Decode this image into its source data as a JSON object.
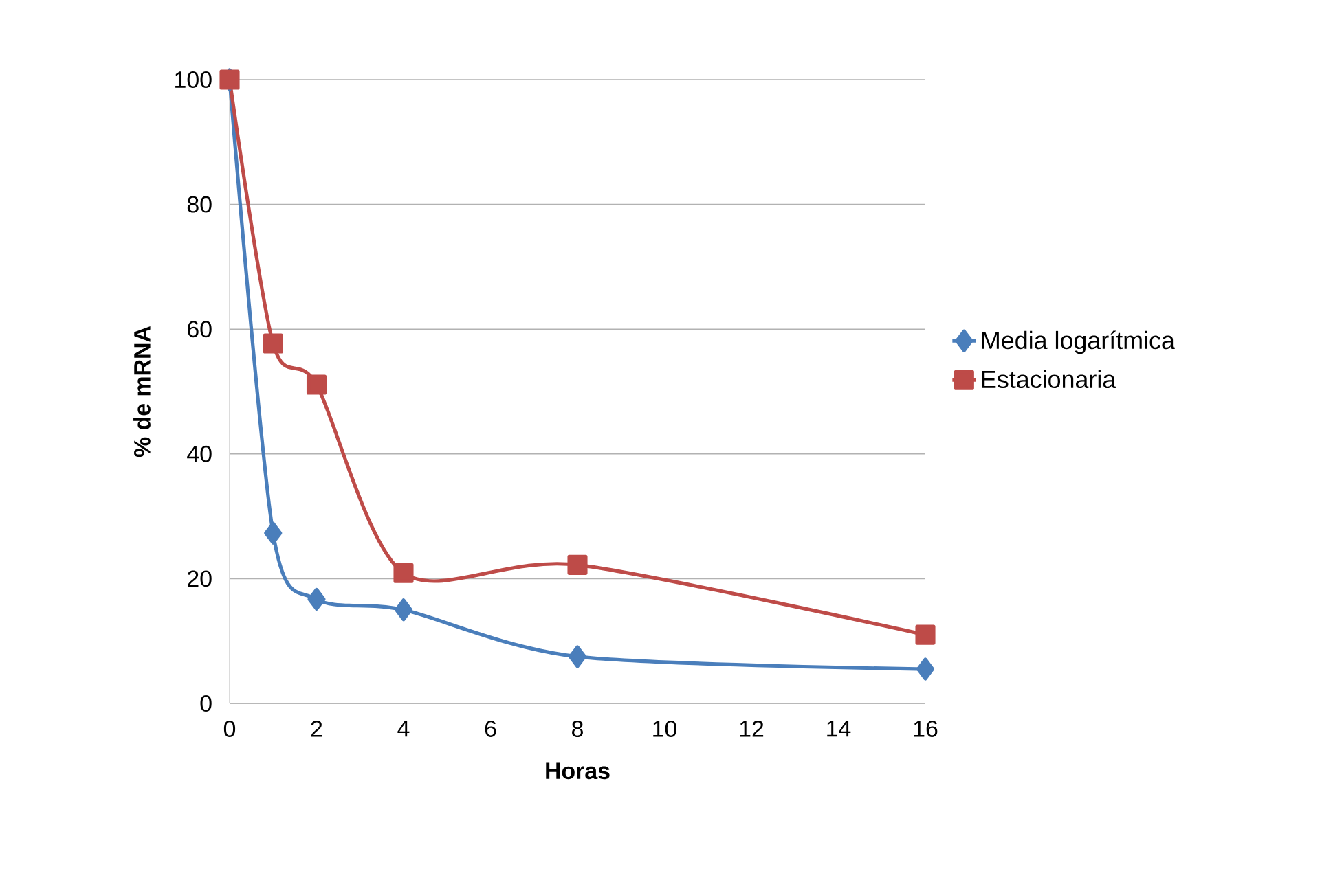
{
  "chart_data": {
    "type": "line",
    "xlabel": "Horas",
    "ylabel": "% de mRNA",
    "x": [
      0,
      1,
      2,
      4,
      8,
      16
    ],
    "series": [
      {
        "name": "Media logarítmica",
        "color": "#4a7ebb",
        "marker": "diamond",
        "values": [
          100,
          27.3,
          16.7,
          15,
          7.5,
          5.5
        ]
      },
      {
        "name": "Estacionaria",
        "color": "#be4b48",
        "marker": "square",
        "values": [
          100,
          57.7,
          51.1,
          20.9,
          22.2,
          11
        ]
      }
    ],
    "xlim": [
      0,
      16
    ],
    "ylim": [
      0,
      100
    ],
    "xticks": [
      0,
      2,
      4,
      6,
      8,
      10,
      12,
      14,
      16
    ],
    "yticks": [
      0,
      20,
      40,
      60,
      80,
      100
    ],
    "grid": "y",
    "legend": "right"
  }
}
